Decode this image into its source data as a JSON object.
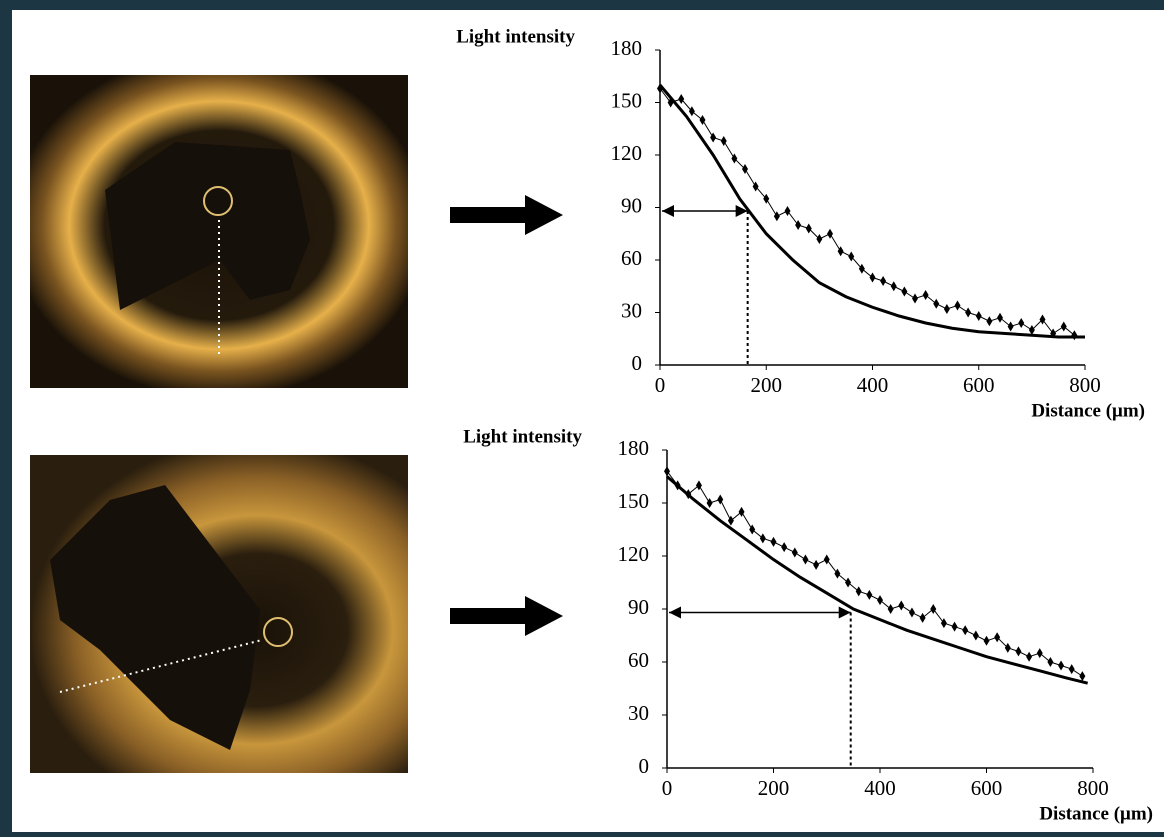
{
  "chart_data": [
    {
      "type": "line",
      "y_label": "Light intensity",
      "x_label": "Distance (μm)",
      "xlim": [
        0,
        800
      ],
      "xticks": [
        0,
        200,
        400,
        600,
        800
      ],
      "ylim": [
        0,
        180
      ],
      "yticks": [
        0,
        30,
        60,
        90,
        120,
        150,
        180
      ],
      "reference": {
        "x": 165,
        "y": 88
      },
      "series": [
        {
          "color": "#000000",
          "marker": "diamond",
          "x": [
            0,
            20,
            40,
            60,
            80,
            100,
            120,
            140,
            160,
            180,
            200,
            220,
            240,
            260,
            280,
            300,
            320,
            340,
            360,
            380,
            400,
            420,
            440,
            460,
            480,
            500,
            520,
            540,
            560,
            580,
            600,
            620,
            640,
            660,
            680,
            700,
            720,
            740,
            760,
            780
          ],
          "values": [
            158,
            150,
            152,
            145,
            140,
            130,
            128,
            118,
            112,
            102,
            95,
            85,
            88,
            80,
            78,
            72,
            75,
            65,
            62,
            55,
            50,
            48,
            45,
            42,
            38,
            40,
            35,
            32,
            34,
            30,
            28,
            25,
            27,
            22,
            24,
            20,
            26,
            18,
            22,
            17
          ]
        },
        {
          "color": "#000000",
          "marker": "none",
          "x": [
            0,
            50,
            100,
            150,
            200,
            250,
            300,
            350,
            400,
            450,
            500,
            550,
            600,
            650,
            700,
            750,
            800
          ],
          "values": [
            160,
            142,
            120,
            95,
            75,
            60,
            47,
            39,
            33,
            28,
            24,
            21,
            19,
            18,
            17,
            16,
            16
          ]
        }
      ]
    },
    {
      "type": "line",
      "y_label": "Light intensity",
      "x_label": "Distance (μm)",
      "xlim": [
        0,
        800
      ],
      "xticks": [
        0,
        200,
        400,
        600,
        800
      ],
      "ylim": [
        0,
        180
      ],
      "yticks": [
        0,
        30,
        60,
        90,
        120,
        150,
        180
      ],
      "reference": {
        "x": 345,
        "y": 88
      },
      "series": [
        {
          "color": "#000000",
          "marker": "diamond",
          "x": [
            0,
            20,
            40,
            60,
            80,
            100,
            120,
            140,
            160,
            180,
            200,
            220,
            240,
            260,
            280,
            300,
            320,
            340,
            360,
            380,
            400,
            420,
            440,
            460,
            480,
            500,
            520,
            540,
            560,
            580,
            600,
            620,
            640,
            660,
            680,
            700,
            720,
            740,
            760,
            780
          ],
          "values": [
            168,
            160,
            155,
            160,
            150,
            152,
            140,
            145,
            135,
            130,
            128,
            125,
            122,
            118,
            115,
            118,
            110,
            105,
            100,
            98,
            95,
            90,
            92,
            88,
            85,
            90,
            82,
            80,
            78,
            75,
            72,
            74,
            68,
            66,
            63,
            65,
            60,
            58,
            56,
            52
          ]
        },
        {
          "color": "#000000",
          "marker": "none",
          "x": [
            0,
            50,
            100,
            150,
            200,
            250,
            300,
            350,
            400,
            450,
            500,
            550,
            600,
            650,
            700,
            750,
            790
          ],
          "values": [
            165,
            152,
            140,
            129,
            118,
            108,
            99,
            90,
            84,
            78,
            73,
            68,
            63,
            59,
            55,
            51,
            48
          ]
        }
      ]
    }
  ]
}
